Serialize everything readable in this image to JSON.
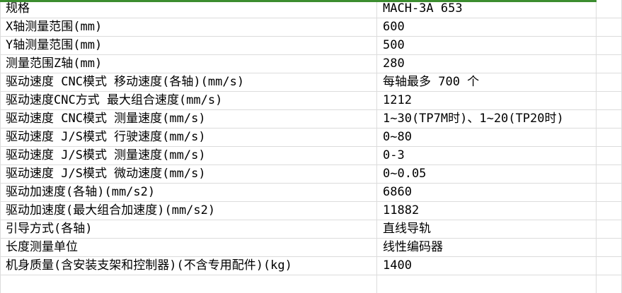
{
  "colors": {
    "accent_green": "#3c8d2f",
    "gridline": "#dcdcdc",
    "text": "#000000",
    "background": "#ffffff"
  },
  "table": {
    "header": {
      "label": "规格",
      "value": "MACH-3A 653"
    },
    "rows": [
      {
        "label": "X轴测量范围(mm)",
        "value": "600"
      },
      {
        "label": "Y轴测量范围(mm)",
        "value": "500"
      },
      {
        "label": "测量范围Z轴(mm)",
        "value": "280"
      },
      {
        "label": "驱动速度 CNC模式 移动速度(各轴)(mm/s)",
        "value": "每轴最多 700 个"
      },
      {
        "label": "驱动速度CNC方式 最大组合速度(mm/s)",
        "value": "1212"
      },
      {
        "label": "驱动速度 CNC模式 测量速度(mm/s)",
        "value": "1~30(TP7M时)、1~20(TP20时)"
      },
      {
        "label": "驱动速度 J/S模式 行驶速度(mm/s)",
        "value": "0~80"
      },
      {
        "label": "驱动速度 J/S模式 测量速度(mm/s)",
        "value": "0-3"
      },
      {
        "label": "驱动速度 J/S模式 微动速度(mm/s)",
        "value": "0~0.05"
      },
      {
        "label": "驱动加速度(各轴)(mm/s2)",
        "value": "6860"
      },
      {
        "label": "驱动加速度(最大组合加速度)(mm/s2)",
        "value": "11882"
      },
      {
        "label": "引导方式(各轴)",
        "value": "直线导轨"
      },
      {
        "label": "长度测量单位",
        "value": "线性编码器"
      },
      {
        "label": "机身质量(含安装支架和控制器)(不含专用配件)(kg)",
        "value": "1400"
      }
    ]
  }
}
